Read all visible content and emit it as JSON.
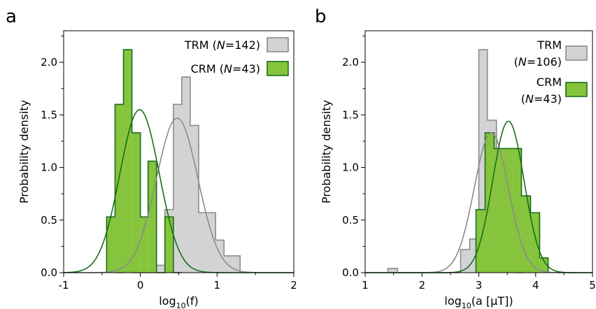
{
  "chart_data": [
    {
      "type": "bar",
      "panel_label": "a",
      "xlabel": "log10(f)",
      "xlabel_base": "log",
      "xlabel_sub": "10",
      "xlabel_rest": "(f)",
      "ylabel": "Probability density",
      "xlim": [
        -1,
        2
      ],
      "ylim": [
        0,
        2.3
      ],
      "xticks": [
        "-1",
        "0",
        "1",
        "2"
      ],
      "yticks": [
        "0.0",
        "0.5",
        "1.0",
        "1.5",
        "2.0"
      ],
      "legend_position": "top-right",
      "series": [
        {
          "name": "TRM (N=142)",
          "legend_prefix": "TRM (",
          "legend_italic": "N",
          "legend_suffix": "=142)",
          "color": "#d3d3d5",
          "edge": "#8c8c8c",
          "fit_color": "#8c8c8c",
          "bin_edges": [
            -0.33,
            -0.22,
            -0.11,
            0.0,
            0.1,
            0.21,
            0.32,
            0.43,
            0.54,
            0.65,
            0.76,
            0.87,
            0.98,
            1.09,
            1.2,
            1.3
          ],
          "densities": [
            0.0,
            0.1,
            0.0,
            0.0,
            0.0,
            0.07,
            0.6,
            1.6,
            1.86,
            1.4,
            0.57,
            0.57,
            0.31,
            0.16,
            0.16
          ],
          "fit": {
            "mu": 0.48,
            "peak": 1.47
          }
        },
        {
          "name": "CRM (N=43)",
          "legend_prefix": "CRM (",
          "legend_italic": "N",
          "legend_suffix": "=43)",
          "color": "#85c43c",
          "edge": "#1a6e1a",
          "fit_color": "#1a6e1a",
          "bin_edges": [
            -0.44,
            -0.33,
            -0.22,
            -0.11,
            0.0,
            0.1,
            0.21,
            0.32,
            0.43,
            0.54
          ],
          "densities": [
            0.53,
            1.6,
            2.12,
            1.33,
            0.53,
            1.06,
            0.0,
            0.53,
            0.0
          ],
          "fit": {
            "mu": -0.01,
            "peak": 1.55
          }
        }
      ]
    },
    {
      "type": "bar",
      "panel_label": "b",
      "xlabel": "log10(a [µT])",
      "xlabel_base": "log",
      "xlabel_sub": "10",
      "xlabel_rest": "(a [µT])",
      "ylabel": "Probability density",
      "xlim": [
        1,
        5
      ],
      "ylim": [
        0,
        2.3
      ],
      "xticks": [
        "1",
        "2",
        "3",
        "4",
        "5"
      ],
      "yticks": [
        "0.0",
        "0.5",
        "1.0",
        "1.5",
        "2.0"
      ],
      "legend_position": "top-right",
      "series": [
        {
          "name": "TRM (N=106)",
          "legend_line1": "TRM",
          "legend_prefix": "(",
          "legend_italic": "N",
          "legend_suffix": "=106)",
          "color": "#d3d3d5",
          "edge": "#8c8c8c",
          "fit_color": "#8c8c8c",
          "bin_edges": [
            1.4,
            1.57,
            1.73,
            1.89,
            2.05,
            2.21,
            2.37,
            2.53,
            2.68,
            2.84,
            3.0,
            3.15,
            3.31,
            3.47,
            3.63,
            3.79
          ],
          "densities": [
            0.04,
            0.0,
            0.0,
            0.0,
            0.0,
            0.0,
            0.0,
            0.0,
            0.22,
            0.32,
            2.12,
            1.45,
            0.71,
            0.33,
            0.0
          ],
          "fit": {
            "mu": 3.22,
            "peak": 1.33
          }
        },
        {
          "name": "CRM (N=43)",
          "legend_line1": "CRM",
          "legend_prefix": "(",
          "legend_italic": "N",
          "legend_suffix": "=43)",
          "color": "#85c43c",
          "edge": "#1a6e1a",
          "fit_color": "#1a6e1a",
          "bin_edges": [
            2.95,
            3.11,
            3.27,
            3.43,
            3.59,
            3.75,
            3.91,
            4.07,
            4.22
          ],
          "densities": [
            0.6,
            1.33,
            1.18,
            1.18,
            1.18,
            0.73,
            0.57,
            0.14
          ],
          "fit": {
            "mu": 3.52,
            "peak": 1.44
          }
        }
      ]
    }
  ]
}
